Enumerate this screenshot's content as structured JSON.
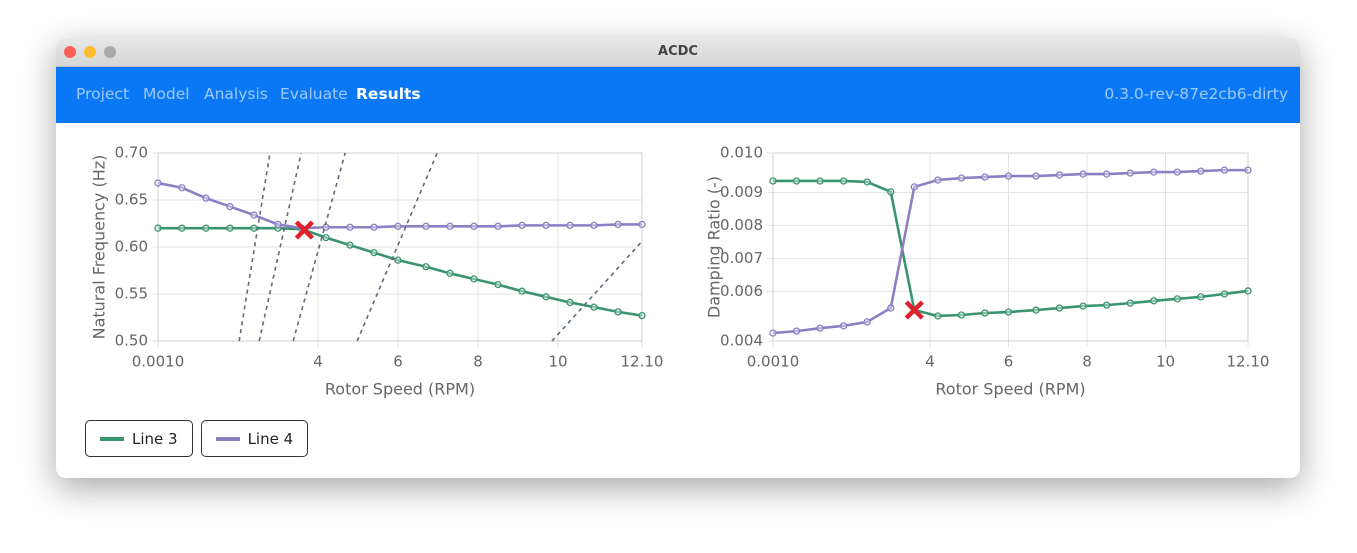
{
  "window": {
    "title": "ACDC"
  },
  "nav": {
    "items": [
      "Project",
      "Model",
      "Analysis",
      "Evaluate",
      "Results"
    ],
    "active": 4,
    "version": "0.3.0-rev-87e2cb6-dirty"
  },
  "chart_data": [
    {
      "type": "line",
      "xlabel": "Rotor Speed (RPM)",
      "ylabel": "Natural Frequency (Hz)",
      "xlim": [
        0.001,
        12.1
      ],
      "xticks": [
        {
          "value": 0.001,
          "label": "0.0010"
        },
        4,
        6,
        8,
        10,
        {
          "value": 12.1,
          "label": "12.10"
        }
      ],
      "ylim": [
        0.5,
        0.7
      ],
      "yticks": [
        {
          "value": 0.5,
          "label": "0.50"
        },
        0.55,
        {
          "value": 0.6,
          "label": "0.60"
        },
        0.65,
        {
          "value": 0.7,
          "label": "0.70"
        }
      ],
      "grid": true,
      "series": [
        {
          "name": "Line 3",
          "color": "#3a9470",
          "x": [
            0.001,
            0.6,
            1.2,
            1.8,
            2.4,
            3.0,
            3.6,
            4.2,
            4.8,
            5.4,
            6.0,
            6.7,
            7.3,
            7.9,
            8.5,
            9.1,
            9.7,
            10.3,
            10.9,
            11.5,
            12.1
          ],
          "values": [
            0.62,
            0.62,
            0.62,
            0.62,
            0.62,
            0.62,
            0.619,
            0.61,
            0.602,
            0.594,
            0.586,
            0.579,
            0.572,
            0.566,
            0.56,
            0.553,
            0.547,
            0.541,
            0.536,
            0.531,
            0.527
          ]
        },
        {
          "name": "Line 4",
          "color": "#8c7fc3",
          "x": [
            0.001,
            0.6,
            1.2,
            1.8,
            2.4,
            3.0,
            3.6,
            4.2,
            4.8,
            5.4,
            6.0,
            6.7,
            7.3,
            7.9,
            8.5,
            9.1,
            9.7,
            10.3,
            10.9,
            11.5,
            12.1
          ],
          "values": [
            0.668,
            0.663,
            0.652,
            0.643,
            0.634,
            0.624,
            0.62,
            0.621,
            0.621,
            0.621,
            0.622,
            0.622,
            0.622,
            0.622,
            0.622,
            0.623,
            0.623,
            0.623,
            0.623,
            0.624,
            0.624
          ]
        },
        {
          "color": "#5a6b7d",
          "dash": true,
          "x": [
            2.03,
            2.8
          ],
          "values": [
            0.5,
            0.7
          ]
        },
        {
          "color": "#5a6b7d",
          "dash": true,
          "x": [
            2.53,
            3.58
          ],
          "values": [
            0.5,
            0.7
          ]
        },
        {
          "color": "#5a6b7d",
          "dash": true,
          "x": [
            3.38,
            4.68
          ],
          "values": [
            0.5,
            0.7
          ]
        },
        {
          "color": "#5a6b7d",
          "dash": true,
          "x": [
            4.98,
            6.98
          ],
          "values": [
            0.5,
            0.7
          ]
        },
        {
          "color": "#5a6b7d",
          "dash": true,
          "x": [
            9.85,
            12.1
          ],
          "values": [
            0.5,
            0.606
          ]
        }
      ],
      "marker": {
        "x": 3.66,
        "y": 0.618,
        "color": "#e0202a"
      }
    },
    {
      "type": "line",
      "xlabel": "Rotor Speed (RPM)",
      "ylabel": "Damping Ratio (-)",
      "xlim": [
        0.001,
        12.1
      ],
      "xticks": [
        {
          "value": 0.001,
          "label": "0.0010"
        },
        4,
        6,
        8,
        10,
        {
          "value": 12.1,
          "label": "12.10"
        }
      ],
      "ylim": [
        0.00449,
        0.0102
      ],
      "yticks": [
        {
          "value": 0.00449,
          "label": "0.004"
        },
        0.006,
        0.007,
        0.008,
        0.009,
        {
          "value": 0.0102,
          "label": "0.010"
        }
      ],
      "grid": true,
      "series": [
        {
          "name": "Line 3",
          "color": "#3a9470",
          "x": [
            0.001,
            0.6,
            1.2,
            1.8,
            2.4,
            3.0,
            3.6,
            4.2,
            4.8,
            5.4,
            6.0,
            6.7,
            7.3,
            7.9,
            8.5,
            9.1,
            9.7,
            10.3,
            10.9,
            11.5,
            12.1
          ],
          "values": [
            0.00935,
            0.00935,
            0.00935,
            0.00935,
            0.00932,
            0.00902,
            0.00543,
            0.00525,
            0.00528,
            0.00534,
            0.00537,
            0.00543,
            0.00549,
            0.00555,
            0.00558,
            0.00564,
            0.00571,
            0.00577,
            0.00583,
            0.00592,
            0.00601
          ]
        },
        {
          "name": "Line 4",
          "color": "#8c7fc3",
          "x": [
            0.001,
            0.6,
            1.2,
            1.8,
            2.4,
            3.0,
            3.6,
            4.2,
            4.8,
            5.4,
            6.0,
            6.7,
            7.3,
            7.9,
            8.5,
            9.1,
            9.7,
            10.3,
            10.9,
            11.5,
            12.1
          ],
          "values": [
            0.00473,
            0.00479,
            0.00488,
            0.00495,
            0.00507,
            0.00549,
            0.00917,
            0.00938,
            0.00944,
            0.00947,
            0.0095,
            0.0095,
            0.00953,
            0.00956,
            0.00956,
            0.00959,
            0.00962,
            0.00962,
            0.00965,
            0.00968,
            0.00968
          ]
        }
      ],
      "marker": {
        "x": 3.6,
        "y": 0.00543,
        "color": "#e0202a"
      }
    }
  ]
}
